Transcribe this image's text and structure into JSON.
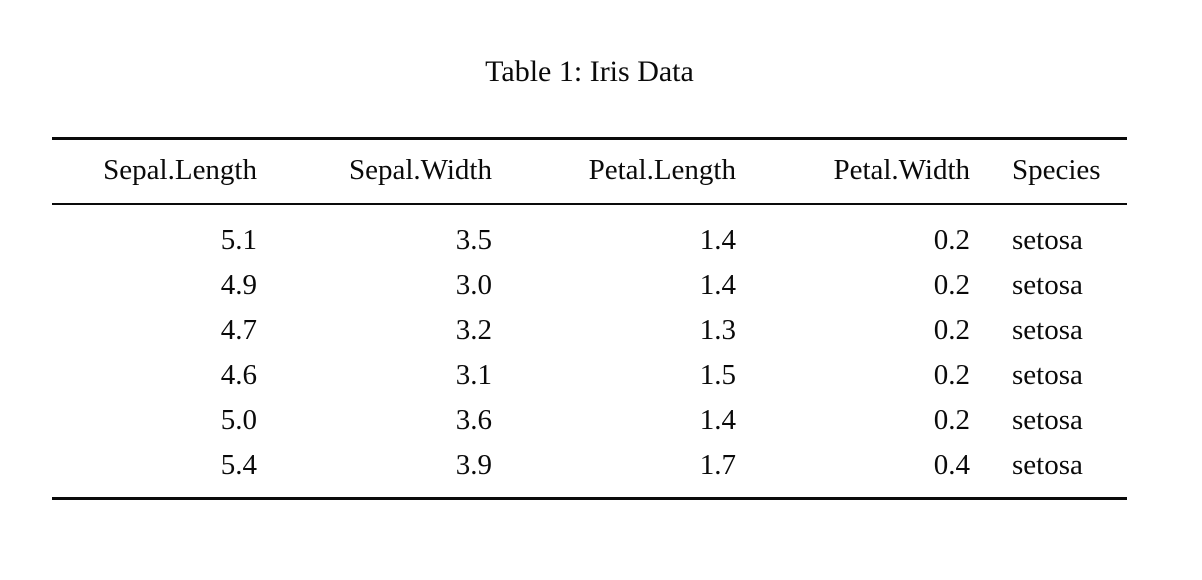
{
  "caption": "Table 1: Iris Data",
  "table": {
    "columns": [
      {
        "label": "Sepal.Length",
        "align": "right"
      },
      {
        "label": "Sepal.Width",
        "align": "right"
      },
      {
        "label": "Petal.Length",
        "align": "right"
      },
      {
        "label": "Petal.Width",
        "align": "right"
      },
      {
        "label": "Species",
        "align": "left"
      }
    ],
    "rows": [
      [
        "5.1",
        "3.5",
        "1.4",
        "0.2",
        "setosa"
      ],
      [
        "4.9",
        "3.0",
        "1.4",
        "0.2",
        "setosa"
      ],
      [
        "4.7",
        "3.2",
        "1.3",
        "0.2",
        "setosa"
      ],
      [
        "4.6",
        "3.1",
        "1.5",
        "0.2",
        "setosa"
      ],
      [
        "5.0",
        "3.6",
        "1.4",
        "0.2",
        "setosa"
      ],
      [
        "5.4",
        "3.9",
        "1.7",
        "0.4",
        "setosa"
      ]
    ]
  },
  "colors": {
    "text": "#0a0a0a",
    "background": "#ffffff"
  }
}
